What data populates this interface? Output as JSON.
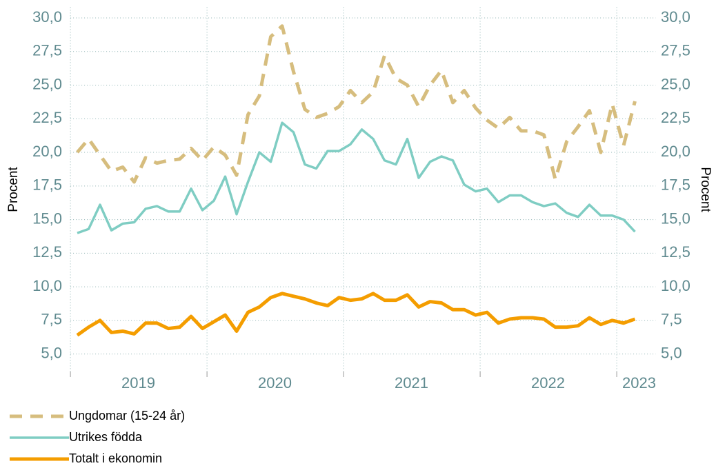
{
  "chart_data": {
    "type": "line",
    "ylabel": "Procent",
    "y2label": "Procent",
    "categories": [
      null,
      null,
      null,
      null,
      null,
      "2019",
      null,
      null,
      null,
      null,
      null,
      null,
      null,
      null,
      null,
      null,
      null,
      "2020",
      null,
      null,
      null,
      null,
      null,
      null,
      null,
      null,
      null,
      null,
      null,
      "2021",
      null,
      null,
      null,
      null,
      null,
      null,
      null,
      null,
      null,
      null,
      null,
      "2022",
      null,
      null,
      null,
      null,
      null,
      null,
      null,
      "2023"
    ],
    "ylim": [
      3.7,
      30.8
    ],
    "yticks": [
      {
        "value": 5,
        "label": "5,0"
      },
      {
        "value": 7.5,
        "label": "7,5"
      },
      {
        "value": 10,
        "label": "10,0"
      },
      {
        "value": 12.5,
        "label": "12,5"
      },
      {
        "value": 15,
        "label": "15,0"
      },
      {
        "value": 17.5,
        "label": "17,5"
      },
      {
        "value": 20,
        "label": "20,0"
      },
      {
        "value": 22.5,
        "label": "22,5"
      },
      {
        "value": 25,
        "label": "25,0"
      },
      {
        "value": 27.5,
        "label": "27,5"
      },
      {
        "value": 30,
        "label": "30,0"
      }
    ],
    "y2lim": [
      3.7,
      30.8
    ],
    "y2ticks": [
      {
        "value": 5,
        "label": "5,0"
      },
      {
        "value": 7.5,
        "label": "7,5"
      },
      {
        "value": 10,
        "label": "10,0"
      },
      {
        "value": 12.5,
        "label": "12,5"
      },
      {
        "value": 15,
        "label": "15,0"
      },
      {
        "value": 17.5,
        "label": "17,5"
      },
      {
        "value": 20,
        "label": "20,0"
      },
      {
        "value": 22.5,
        "label": "22,5"
      },
      {
        "value": 25,
        "label": "25,0"
      },
      {
        "value": 27.5,
        "label": "27,5"
      },
      {
        "value": 30,
        "label": "30,0"
      }
    ],
    "grid": true,
    "series": [
      {
        "name": "Ungdomar (15-24 år)",
        "color": "#d6bd7e",
        "dashed": true,
        "values": [
          20.0,
          21.0,
          19.8,
          18.6,
          18.9,
          17.8,
          19.6,
          19.2,
          19.4,
          19.5,
          20.3,
          19.4,
          20.4,
          19.8,
          18.3,
          22.8,
          24.2,
          28.6,
          29.4,
          26.0,
          23.2,
          22.6,
          22.9,
          23.4,
          24.6,
          23.7,
          24.5,
          27.2,
          25.5,
          25.0,
          23.4,
          25.0,
          26.1,
          23.7,
          24.6,
          23.3,
          22.4,
          21.8,
          22.6,
          21.6,
          21.6,
          21.3,
          18.0,
          20.8,
          21.9,
          23.1,
          20.0,
          23.6,
          20.5,
          23.8
        ]
      },
      {
        "name": "Utrikes födda",
        "color": "#7fcdc3",
        "dashed": false,
        "values": [
          14.0,
          14.3,
          16.1,
          14.2,
          14.7,
          14.8,
          15.8,
          16.0,
          15.6,
          15.6,
          17.3,
          15.7,
          16.4,
          18.2,
          15.4,
          17.8,
          20.0,
          19.3,
          22.2,
          21.5,
          19.1,
          18.8,
          20.1,
          20.1,
          20.6,
          21.7,
          21.0,
          19.4,
          19.1,
          21.0,
          18.1,
          19.3,
          19.7,
          19.4,
          17.6,
          17.1,
          17.3,
          16.3,
          16.8,
          16.8,
          16.3,
          16.0,
          16.2,
          15.5,
          15.2,
          16.1,
          15.3,
          15.3,
          15.0,
          14.1
        ]
      },
      {
        "name": "Totalt i ekonomin",
        "color": "#f49d00",
        "dashed": false,
        "values": [
          6.4,
          7.0,
          7.5,
          6.6,
          6.7,
          6.5,
          7.3,
          7.3,
          6.9,
          7.0,
          7.8,
          6.9,
          7.4,
          7.9,
          6.7,
          8.1,
          8.5,
          9.2,
          9.5,
          9.3,
          9.1,
          8.8,
          8.6,
          9.2,
          9.0,
          9.1,
          9.5,
          9.0,
          9.0,
          9.4,
          8.5,
          8.9,
          8.8,
          8.3,
          8.3,
          7.9,
          8.1,
          7.3,
          7.6,
          7.7,
          7.7,
          7.6,
          7.0,
          7.0,
          7.1,
          7.7,
          7.2,
          7.5,
          7.3,
          7.6
        ]
      }
    ]
  }
}
